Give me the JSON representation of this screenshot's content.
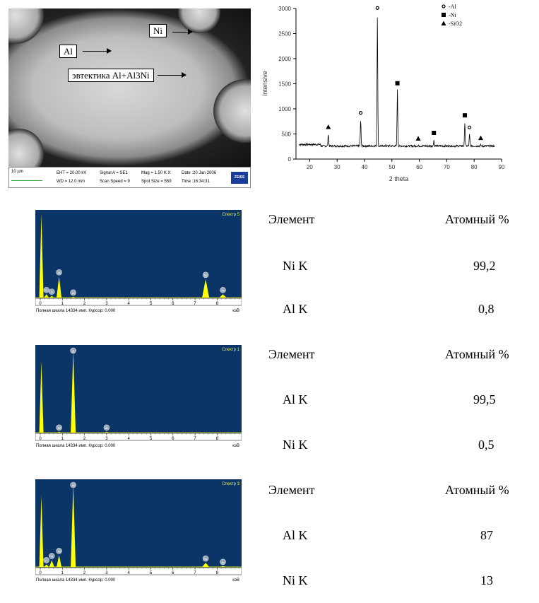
{
  "sem": {
    "labels": {
      "ni": "Ni",
      "al": "Al",
      "eutectic": "эвтектика Al+Al3Ni"
    },
    "info": {
      "scale": "10 µm",
      "eht": "EHT = 20.00 kV",
      "wd": "WD = 12.0 mm",
      "signal": "Signal A = SE1",
      "scan": "Scan Speed = 9",
      "mag": "Mag =  1.50 K X",
      "spot": "Spot Size = 559",
      "date": "Date :20 Jan 2006",
      "time": "Time :16:34:31",
      "logo": "ZEISS"
    }
  },
  "chart_data": [
    {
      "type": "line",
      "title": "",
      "xlabel": "2 theta",
      "ylabel": "intensive",
      "xlim": [
        15,
        90
      ],
      "ylim": [
        0,
        3000
      ],
      "xticks": [
        "20",
        "30",
        "40",
        "50",
        "60",
        "70",
        "80",
        "90"
      ],
      "yticks": [
        "0",
        "500",
        "1000",
        "1500",
        "2000",
        "2500",
        "3000"
      ],
      "legend": {
        "placement": "top-right",
        "entries": [
          "-Al",
          "-Ni",
          "-SiO2"
        ]
      },
      "baseline": 260,
      "peaks": [
        {
          "x": 26.8,
          "y": 500,
          "phase": "SiO2"
        },
        {
          "x": 38.6,
          "y": 780,
          "phase": "Al"
        },
        {
          "x": 44.7,
          "y": 2870,
          "phase": "Al"
        },
        {
          "x": 52.0,
          "y": 1370,
          "phase": "Ni"
        },
        {
          "x": 59.6,
          "y": 270,
          "phase": "SiO2"
        },
        {
          "x": 65.3,
          "y": 380,
          "phase": "Ni"
        },
        {
          "x": 76.6,
          "y": 730,
          "phase": "Ni"
        },
        {
          "x": 78.3,
          "y": 490,
          "phase": "Al"
        },
        {
          "x": 82.4,
          "y": 280,
          "phase": "SiO2"
        }
      ]
    },
    {
      "type": "bar",
      "title": "Спектр 5",
      "xlabel": "кэВ",
      "xticks": [
        "0",
        "1",
        "2",
        "3",
        "4",
        "5",
        "6",
        "7",
        "8"
      ],
      "footer": "Полная шкала 14334 имп. Курсор: 0.000",
      "peaks": [
        {
          "x": 0.05,
          "h": 1.0,
          "label": ""
        },
        {
          "x": 0.28,
          "h": 0.04,
          "label": "C"
        },
        {
          "x": 0.52,
          "h": 0.02,
          "label": "O"
        },
        {
          "x": 0.85,
          "h": 0.25,
          "label": "Ni"
        },
        {
          "x": 1.49,
          "h": 0.01,
          "label": "Al"
        },
        {
          "x": 7.48,
          "h": 0.22,
          "label": "Ni"
        },
        {
          "x": 8.26,
          "h": 0.04,
          "label": "Ni"
        }
      ]
    },
    {
      "type": "bar",
      "title": "Спектр 1",
      "xlabel": "кэВ",
      "xticks": [
        "0",
        "1",
        "2",
        "3",
        "4",
        "5",
        "6",
        "7",
        "8"
      ],
      "footer": "Полная шкала 14334 имп. Курсор: 0.000",
      "peaks": [
        {
          "x": 0.05,
          "h": 0.85,
          "label": ""
        },
        {
          "x": 0.85,
          "h": 0.01,
          "label": "Ni"
        },
        {
          "x": 1.49,
          "h": 0.98,
          "label": "Al"
        },
        {
          "x": 3.0,
          "h": 0.01,
          "label": "Ar"
        }
      ]
    },
    {
      "type": "bar",
      "title": "Спектр 3",
      "xlabel": "кэВ",
      "xticks": [
        "0",
        "1",
        "2",
        "3",
        "4",
        "5",
        "6",
        "7",
        "8"
      ],
      "footer": "Полная шкала 14334 имп. Курсор: 0.000",
      "peaks": [
        {
          "x": 0.05,
          "h": 0.85,
          "label": ""
        },
        {
          "x": 0.28,
          "h": 0.03,
          "label": "C"
        },
        {
          "x": 0.52,
          "h": 0.08,
          "label": "O"
        },
        {
          "x": 0.85,
          "h": 0.14,
          "label": "Ni"
        },
        {
          "x": 1.49,
          "h": 0.98,
          "label": "Al"
        },
        {
          "x": 7.48,
          "h": 0.05,
          "label": "Ni"
        },
        {
          "x": 8.26,
          "h": 0.01,
          "label": "Ni"
        }
      ]
    }
  ],
  "tables": [
    {
      "h1": "Элемент",
      "h2": "Атомный %",
      "rows": [
        {
          "el": "Ni K",
          "v": "99,2"
        },
        {
          "el": "Al K",
          "v": "0,8"
        }
      ]
    },
    {
      "h1": "Элемент",
      "h2": "Атомный %",
      "rows": [
        {
          "el": "Al K",
          "v": "99,5"
        },
        {
          "el": "Ni K",
          "v": "0,5"
        }
      ]
    },
    {
      "h1": "Элемент",
      "h2": "Атомный %",
      "rows": [
        {
          "el": "Al K",
          "v": "87"
        },
        {
          "el": "Ni K",
          "v": "13"
        }
      ]
    }
  ]
}
